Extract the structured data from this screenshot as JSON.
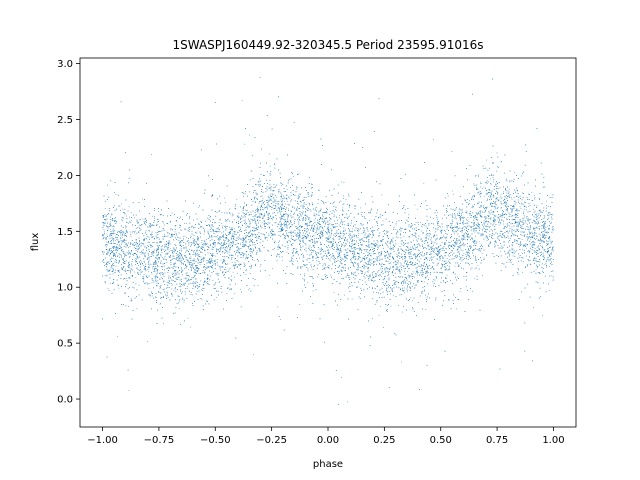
{
  "chart_data": {
    "type": "scatter",
    "title": "1SWASPJ160449.92-320345.5 Period 23595.91016s",
    "xlabel": "phase",
    "ylabel": "flux",
    "xlim": [
      -1.1,
      1.1
    ],
    "ylim": [
      -0.25,
      3.05
    ],
    "xticks": [
      -1.0,
      -0.75,
      -0.5,
      -0.25,
      0.0,
      0.25,
      0.5,
      0.75,
      1.0
    ],
    "xtick_labels": [
      "−1.00",
      "−0.75",
      "−0.50",
      "−0.25",
      "0.00",
      "0.25",
      "0.50",
      "0.75",
      "1.00"
    ],
    "yticks": [
      0.0,
      0.5,
      1.0,
      1.5,
      2.0,
      2.5,
      3.0
    ],
    "ytick_labels": [
      "0.0",
      "0.5",
      "1.0",
      "1.5",
      "2.0",
      "2.5",
      "3.0"
    ],
    "grid": false,
    "legend": "none",
    "marker_color": "#1f77b4",
    "series": [
      {
        "profile_phase": [
          -1.0,
          -0.85,
          -0.7,
          -0.55,
          -0.4,
          -0.27,
          -0.15,
          0.0,
          0.15,
          0.3,
          0.45,
          0.6,
          0.73,
          0.85,
          1.0
        ],
        "profile_flux": [
          1.4,
          1.32,
          1.25,
          1.27,
          1.4,
          1.68,
          1.55,
          1.4,
          1.3,
          1.25,
          1.28,
          1.4,
          1.68,
          1.55,
          1.42
        ]
      }
    ]
  }
}
